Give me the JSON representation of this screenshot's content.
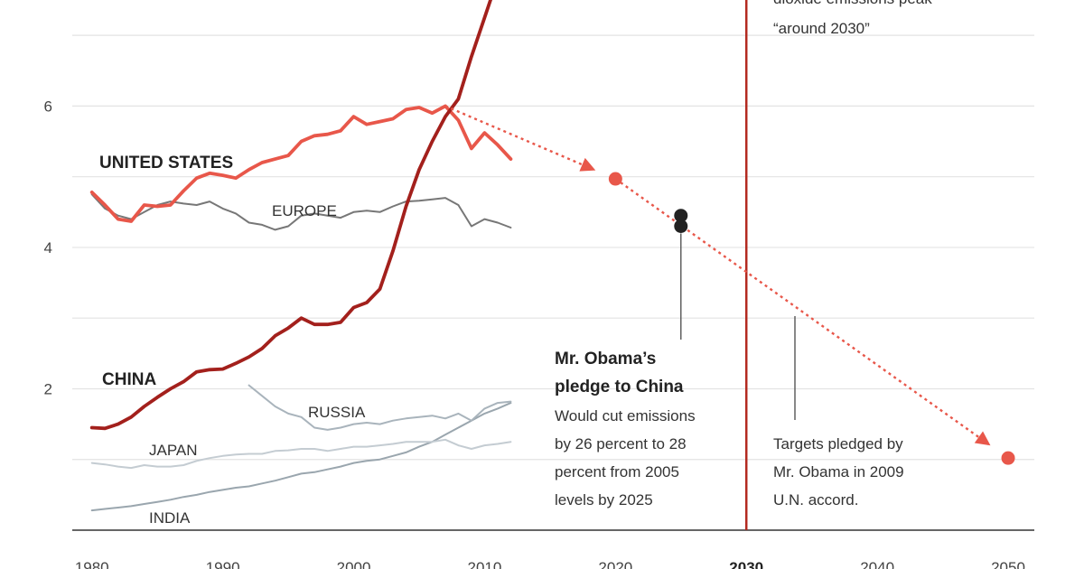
{
  "chart_data": {
    "type": "line",
    "xlim": [
      1978.5,
      2052
    ],
    "ylim": [
      0,
      7.5
    ],
    "x_ticks": [
      1980,
      1990,
      2000,
      2010,
      2020,
      2030,
      2040,
      2050
    ],
    "x_tick_labels": [
      "1980",
      "1990",
      "2000",
      "2010",
      "2020",
      "2030",
      "2040",
      "2050"
    ],
    "y_ticks": [
      2,
      4,
      6
    ],
    "y_tick_labels": [
      "2",
      "4",
      "6"
    ],
    "gridlines": [
      1,
      2,
      3,
      4,
      5,
      6,
      7
    ],
    "grid": true,
    "highlight_x": 2030,
    "series": [
      {
        "name": "CHINA",
        "color": "#a3201c",
        "x": [
          1980,
          1981,
          1982,
          1983,
          1984,
          1985,
          1986,
          1987,
          1988,
          1989,
          1990,
          1991,
          1992,
          1993,
          1994,
          1995,
          1996,
          1997,
          1998,
          1999,
          2000,
          2001,
          2002,
          2003,
          2004,
          2005,
          2006,
          2007,
          2008,
          2009,
          2010,
          2011
        ],
        "values": [
          1.45,
          1.44,
          1.5,
          1.6,
          1.75,
          1.88,
          2.0,
          2.1,
          2.24,
          2.27,
          2.28,
          2.36,
          2.45,
          2.57,
          2.75,
          2.86,
          3.0,
          2.91,
          2.91,
          2.94,
          3.15,
          3.22,
          3.41,
          3.95,
          4.58,
          5.1,
          5.5,
          5.85,
          6.1,
          6.7,
          7.25,
          7.8
        ]
      },
      {
        "name": "UNITED STATES",
        "color": "#e8574a",
        "x": [
          1980,
          1981,
          1982,
          1983,
          1984,
          1985,
          1986,
          1987,
          1988,
          1989,
          1990,
          1991,
          1992,
          1993,
          1994,
          1995,
          1996,
          1997,
          1998,
          1999,
          2000,
          2001,
          2002,
          2003,
          2004,
          2005,
          2006,
          2007,
          2008,
          2009,
          2010,
          2011,
          2012
        ],
        "values": [
          4.78,
          4.6,
          4.4,
          4.37,
          4.6,
          4.58,
          4.6,
          4.8,
          4.98,
          5.05,
          5.02,
          4.98,
          5.1,
          5.2,
          5.25,
          5.3,
          5.5,
          5.58,
          5.6,
          5.65,
          5.85,
          5.74,
          5.78,
          5.82,
          5.95,
          5.98,
          5.9,
          6.0,
          5.8,
          5.4,
          5.62,
          5.45,
          5.25
        ]
      },
      {
        "name": "EUROPE",
        "color": "#777777",
        "x": [
          1980,
          1981,
          1982,
          1983,
          1984,
          1985,
          1986,
          1987,
          1988,
          1989,
          1990,
          1991,
          1992,
          1993,
          1994,
          1995,
          1996,
          1997,
          1998,
          1999,
          2000,
          2001,
          2002,
          2003,
          2004,
          2005,
          2006,
          2007,
          2008,
          2009,
          2010,
          2011,
          2012
        ],
        "values": [
          4.75,
          4.55,
          4.45,
          4.4,
          4.5,
          4.6,
          4.65,
          4.62,
          4.6,
          4.65,
          4.55,
          4.48,
          4.35,
          4.32,
          4.25,
          4.3,
          4.45,
          4.48,
          4.45,
          4.42,
          4.5,
          4.52,
          4.5,
          4.58,
          4.65,
          4.66,
          4.68,
          4.7,
          4.6,
          4.3,
          4.4,
          4.35,
          4.28
        ]
      },
      {
        "name": "RUSSIA",
        "color": "#a9b4bc",
        "x": [
          1992,
          1993,
          1994,
          1995,
          1996,
          1997,
          1998,
          1999,
          2000,
          2001,
          2002,
          2003,
          2004,
          2005,
          2006,
          2007,
          2008,
          2009,
          2010,
          2011,
          2012
        ],
        "values": [
          2.05,
          1.9,
          1.75,
          1.65,
          1.6,
          1.45,
          1.42,
          1.45,
          1.5,
          1.52,
          1.5,
          1.55,
          1.58,
          1.6,
          1.62,
          1.58,
          1.65,
          1.55,
          1.72,
          1.8,
          1.82
        ]
      },
      {
        "name": "JAPAN",
        "color": "#c4ccd2",
        "x": [
          1980,
          1981,
          1982,
          1983,
          1984,
          1985,
          1986,
          1987,
          1988,
          1989,
          1990,
          1991,
          1992,
          1993,
          1994,
          1995,
          1996,
          1997,
          1998,
          1999,
          2000,
          2001,
          2002,
          2003,
          2004,
          2005,
          2006,
          2007,
          2008,
          2009,
          2010,
          2011,
          2012
        ],
        "values": [
          0.95,
          0.93,
          0.9,
          0.88,
          0.92,
          0.9,
          0.9,
          0.92,
          0.98,
          1.02,
          1.05,
          1.07,
          1.08,
          1.08,
          1.12,
          1.13,
          1.15,
          1.15,
          1.12,
          1.15,
          1.18,
          1.18,
          1.2,
          1.22,
          1.25,
          1.25,
          1.25,
          1.28,
          1.2,
          1.15,
          1.2,
          1.22,
          1.25
        ]
      },
      {
        "name": "INDIA",
        "color": "#9aa6ae",
        "x": [
          1980,
          1981,
          1982,
          1983,
          1984,
          1985,
          1986,
          1987,
          1988,
          1989,
          1990,
          1991,
          1992,
          1993,
          1994,
          1995,
          1996,
          1997,
          1998,
          1999,
          2000,
          2001,
          2002,
          2003,
          2004,
          2005,
          2006,
          2007,
          2008,
          2009,
          2010,
          2011,
          2012
        ],
        "values": [
          0.28,
          0.3,
          0.32,
          0.34,
          0.37,
          0.4,
          0.43,
          0.47,
          0.5,
          0.54,
          0.57,
          0.6,
          0.62,
          0.66,
          0.7,
          0.75,
          0.8,
          0.82,
          0.86,
          0.9,
          0.95,
          0.98,
          1.0,
          1.05,
          1.1,
          1.18,
          1.25,
          1.35,
          1.45,
          1.55,
          1.65,
          1.72,
          1.8
        ]
      }
    ],
    "us_pledge_path": {
      "color": "#e8574a",
      "x": [
        2007,
        2020,
        2050
      ],
      "values": [
        6.0,
        4.97,
        1.02
      ],
      "points": [
        {
          "x": 2020,
          "value": 4.97
        },
        {
          "x": 2050,
          "value": 1.02
        }
      ]
    },
    "china_pledge_points": {
      "color": "#222222",
      "x": [
        2025,
        2025
      ],
      "values": [
        4.45,
        4.3
      ]
    },
    "labels": {
      "united_states": "UNITED STATES",
      "china": "CHINA",
      "europe": "EUROPE",
      "russia": "RUSSIA",
      "japan": "JAPAN",
      "india": "INDIA"
    },
    "annotations": {
      "top_right_lines": [
        "dioxide emissions peak",
        "“around 2030”"
      ],
      "obama_title_lines": [
        "Mr. Obama’s",
        "pledge to China"
      ],
      "obama_body_lines": [
        "Would cut emissions",
        "by 26 percent to 28",
        "percent from 2005",
        "levels by 2025"
      ],
      "targets_lines": [
        "Targets pledged by",
        "Mr. Obama in 2009",
        "U.N. accord."
      ]
    }
  }
}
